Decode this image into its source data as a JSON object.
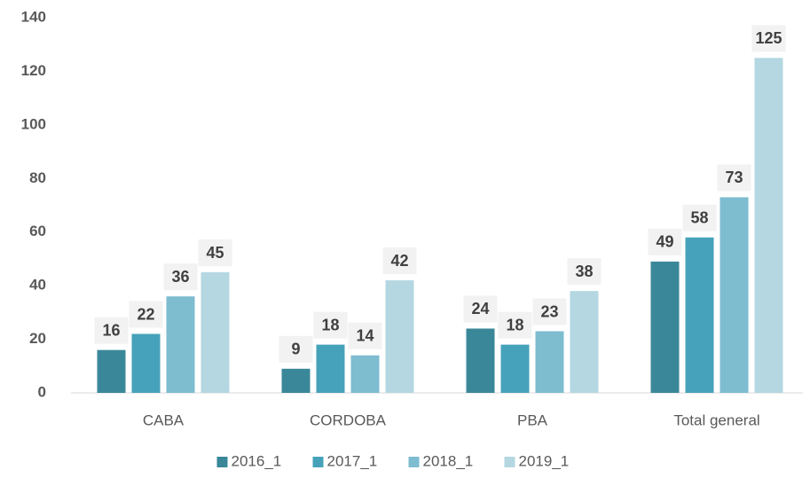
{
  "chart_data": {
    "type": "bar",
    "categories": [
      "CABA",
      "CORDOBA",
      "PBA",
      "Total general"
    ],
    "series": [
      {
        "name": "2016_1",
        "color": "#3a8799",
        "values": [
          16,
          9,
          24,
          49
        ]
      },
      {
        "name": "2017_1",
        "color": "#46a2ba",
        "values": [
          22,
          18,
          18,
          58
        ]
      },
      {
        "name": "2018_1",
        "color": "#7ebcd0",
        "values": [
          36,
          14,
          23,
          73
        ]
      },
      {
        "name": "2019_1",
        "color": "#b4d7e2",
        "values": [
          45,
          42,
          38,
          125
        ]
      }
    ],
    "ylim": [
      0,
      140
    ],
    "yticks": [
      0,
      20,
      40,
      60,
      80,
      100,
      120,
      140
    ],
    "grid": false,
    "legend": "bottom"
  }
}
